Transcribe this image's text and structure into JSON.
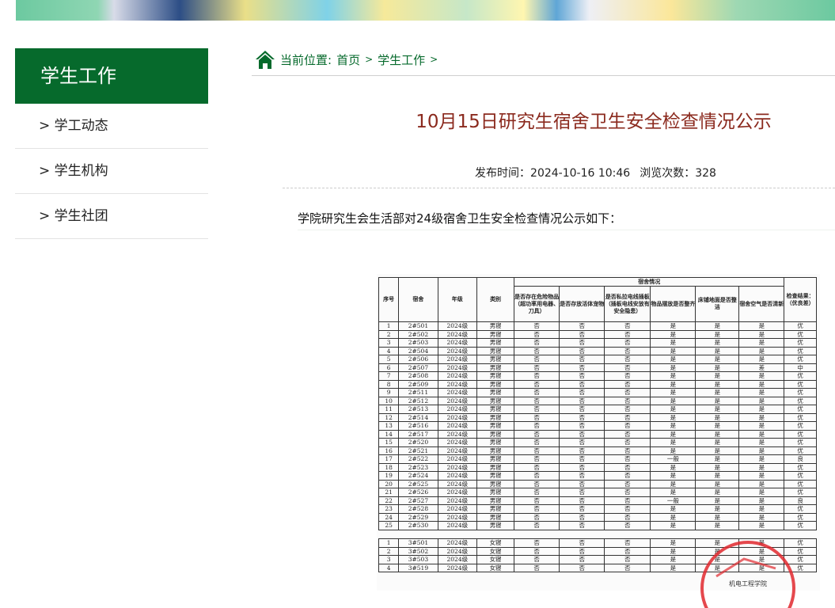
{
  "sidebar": {
    "title": "学生工作",
    "items": [
      {
        "label": "> 学工动态"
      },
      {
        "label": "> 学生机构"
      },
      {
        "label": "> 学生社团"
      }
    ]
  },
  "breadcrumb": {
    "prefix": "当前位置:",
    "home": "首页",
    "sep1": ">",
    "section": "学生工作",
    "sep2": ">"
  },
  "article": {
    "title": "10月15日研究生宿舍卫生安全检查情况公示",
    "publish": "发布时间：2024-10-16 10:46",
    "views": "浏览次数：328",
    "intro": "学院研究生会生活部对24级宿舍卫生安全检查情况公示如下："
  },
  "table": {
    "group_header": "宿舍情况",
    "headers": [
      "序号",
      "宿舍",
      "年级",
      "类别",
      "是否存在危险物品（超功率用电器、刀具）",
      "是否存放活体宠物",
      "是否私拉电线插板（插板电线安放有安全隐患）",
      "物品摆放是否整齐",
      "床铺地面是否整洁",
      "宿舍空气是否清新",
      "检查结果：（优良差）"
    ],
    "male_rows": [
      [
        "1",
        "2#501",
        "2024级",
        "男寝",
        "否",
        "否",
        "否",
        "是",
        "是",
        "是",
        "优"
      ],
      [
        "2",
        "2#502",
        "2024级",
        "男寝",
        "否",
        "否",
        "否",
        "是",
        "是",
        "是",
        "优"
      ],
      [
        "3",
        "2#503",
        "2024级",
        "男寝",
        "否",
        "否",
        "否",
        "是",
        "是",
        "是",
        "优"
      ],
      [
        "4",
        "2#504",
        "2024级",
        "男寝",
        "否",
        "否",
        "否",
        "是",
        "是",
        "是",
        "优"
      ],
      [
        "5",
        "2#506",
        "2024级",
        "男寝",
        "否",
        "否",
        "否",
        "是",
        "是",
        "是",
        "优"
      ],
      [
        "6",
        "2#507",
        "2024级",
        "男寝",
        "否",
        "否",
        "否",
        "是",
        "是",
        "差",
        "中"
      ],
      [
        "7",
        "2#508",
        "2024级",
        "男寝",
        "否",
        "否",
        "否",
        "是",
        "是",
        "是",
        "优"
      ],
      [
        "8",
        "2#509",
        "2024级",
        "男寝",
        "否",
        "否",
        "否",
        "是",
        "是",
        "是",
        "优"
      ],
      [
        "9",
        "2#511",
        "2024级",
        "男寝",
        "否",
        "否",
        "否",
        "是",
        "是",
        "是",
        "优"
      ],
      [
        "10",
        "2#512",
        "2024级",
        "男寝",
        "否",
        "否",
        "否",
        "是",
        "是",
        "是",
        "优"
      ],
      [
        "11",
        "2#513",
        "2024级",
        "男寝",
        "否",
        "否",
        "否",
        "是",
        "是",
        "是",
        "优"
      ],
      [
        "12",
        "2#514",
        "2024级",
        "男寝",
        "否",
        "否",
        "否",
        "是",
        "是",
        "是",
        "优"
      ],
      [
        "13",
        "2#516",
        "2024级",
        "男寝",
        "否",
        "否",
        "否",
        "是",
        "是",
        "是",
        "优"
      ],
      [
        "14",
        "2#517",
        "2024级",
        "男寝",
        "否",
        "否",
        "否",
        "是",
        "是",
        "是",
        "优"
      ],
      [
        "15",
        "2#520",
        "2024级",
        "男寝",
        "否",
        "否",
        "否",
        "是",
        "是",
        "是",
        "优"
      ],
      [
        "16",
        "2#521",
        "2024级",
        "男寝",
        "否",
        "否",
        "否",
        "是",
        "是",
        "是",
        "优"
      ],
      [
        "17",
        "2#522",
        "2024级",
        "男寝",
        "否",
        "否",
        "否",
        "一般",
        "是",
        "是",
        "良"
      ],
      [
        "18",
        "2#523",
        "2024级",
        "男寝",
        "否",
        "否",
        "否",
        "是",
        "是",
        "是",
        "优"
      ],
      [
        "19",
        "2#524",
        "2024级",
        "男寝",
        "否",
        "否",
        "否",
        "是",
        "是",
        "是",
        "优"
      ],
      [
        "20",
        "2#525",
        "2024级",
        "男寝",
        "否",
        "否",
        "否",
        "是",
        "是",
        "是",
        "优"
      ],
      [
        "21",
        "2#526",
        "2024级",
        "男寝",
        "否",
        "否",
        "否",
        "是",
        "是",
        "是",
        "优"
      ],
      [
        "22",
        "2#527",
        "2024级",
        "男寝",
        "否",
        "否",
        "否",
        "一般",
        "是",
        "是",
        "良"
      ],
      [
        "23",
        "2#528",
        "2024级",
        "男寝",
        "否",
        "否",
        "否",
        "是",
        "是",
        "是",
        "优"
      ],
      [
        "24",
        "2#529",
        "2024级",
        "男寝",
        "否",
        "否",
        "否",
        "是",
        "是",
        "是",
        "优"
      ],
      [
        "25",
        "2#530",
        "2024级",
        "男寝",
        "否",
        "否",
        "否",
        "是",
        "是",
        "是",
        "优"
      ]
    ],
    "female_rows": [
      [
        "1",
        "3#501",
        "2024级",
        "女寝",
        "否",
        "否",
        "否",
        "是",
        "是",
        "是",
        "优"
      ],
      [
        "2",
        "3#502",
        "2024级",
        "女寝",
        "否",
        "否",
        "否",
        "是",
        "是",
        "是",
        "优"
      ],
      [
        "3",
        "3#503",
        "2024级",
        "女寝",
        "否",
        "否",
        "否",
        "是",
        "是",
        "是",
        "优"
      ],
      [
        "4",
        "3#519",
        "2024级",
        "女寝",
        "否",
        "否",
        "否",
        "是",
        "是",
        "是",
        "优"
      ]
    ],
    "stamp_text": "机电工程学院"
  },
  "colors": {
    "brand_green": "#066a2c",
    "title_red": "#8b2a1e",
    "stamp_red": "#e0282e"
  }
}
